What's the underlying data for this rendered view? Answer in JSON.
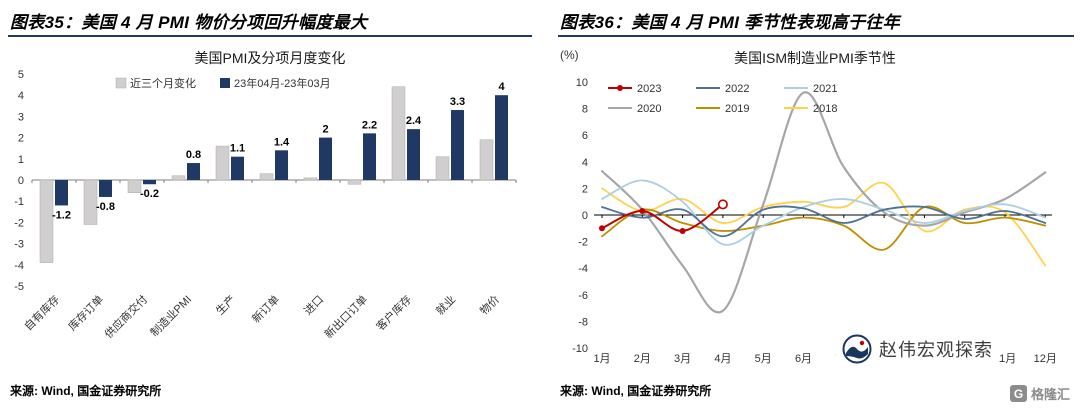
{
  "figures": {
    "left": {
      "heading": "图表35：美国 4 月 PMI 物价分项回升幅度最大",
      "source_prefix": "来源: ",
      "source_text": "Wind, 国金证券研究所"
    },
    "right": {
      "heading": "图表36：美国 4 月 PMI 季节性表现高于往年",
      "source_prefix": "来源: ",
      "source_text": "Wind, 国金证券研究所"
    }
  },
  "watermark": {
    "brand": "赵伟宏观探索"
  },
  "footer_logo": {
    "letter": "G",
    "text": "格隆汇"
  },
  "chart_data": [
    {
      "type": "bar",
      "title": "美国PMI及分项月度变化",
      "categories": [
        "自有库存",
        "库存订单",
        "供应商交付",
        "制造业PMI",
        "生产",
        "新订单",
        "进口",
        "新出口订单",
        "客户库存",
        "就业",
        "物价"
      ],
      "series": [
        {
          "name": "近三个月变化",
          "color": "#d0cece",
          "values": [
            -3.9,
            -2.1,
            -0.6,
            0.2,
            1.6,
            0.3,
            0.1,
            -0.2,
            4.4,
            1.1,
            1.9
          ]
        },
        {
          "name": "23年04月-23年03月",
          "color": "#1f3864",
          "values": [
            -1.2,
            -0.8,
            -0.2,
            0.8,
            1.1,
            1.4,
            2,
            2.2,
            2.4,
            3.3,
            4
          ],
          "labels": [
            "-1.2",
            "-0.8",
            "-0.2",
            "0.8",
            "1.1",
            "1.4",
            "2",
            "2.2",
            "2.4",
            "3.3",
            "4"
          ]
        }
      ],
      "ylim": [
        -5,
        5
      ],
      "ytick_step": 1,
      "grid": false,
      "legend_position": "top-inside"
    },
    {
      "type": "line",
      "title": "美国ISM制造业PMI季节性",
      "ylabel": "(%)",
      "x_labels": [
        "1月",
        "2月",
        "3月",
        "4月",
        "5月",
        "6月",
        "7月",
        "8月",
        "9月",
        "10月",
        "11月",
        "12月"
      ],
      "ylim": [
        -10,
        10
      ],
      "ytick_step": 2,
      "grid": false,
      "legend_position": "top-left-inside",
      "series": [
        {
          "name": "2023",
          "color": "#c00000",
          "width": 2,
          "marker": true,
          "values": [
            -1.0,
            0.3,
            -1.2,
            0.8
          ]
        },
        {
          "name": "2022",
          "color": "#4f7294",
          "width": 1.8,
          "values": [
            0.6,
            -0.2,
            0.4,
            -1.6,
            0.4,
            0.5,
            -0.6,
            0.4,
            0.6,
            -0.3,
            0.3,
            -0.6
          ]
        },
        {
          "name": "2021",
          "color": "#aecde3",
          "width": 1.8,
          "values": [
            1.2,
            2.6,
            1.0,
            -2.2,
            -0.8,
            0.6,
            1.2,
            0.4,
            -0.6,
            0.3,
            0.8,
            -0.2
          ]
        },
        {
          "name": "2020",
          "color": "#a6a6a6",
          "width": 2.2,
          "values": [
            3.3,
            0.4,
            -3.8,
            -7.2,
            0.8,
            9.2,
            3.6,
            0.2,
            -0.8,
            0.2,
            1.2,
            3.2
          ]
        },
        {
          "name": "2019",
          "color": "#bf8f00",
          "width": 1.8,
          "values": [
            -1.6,
            0.4,
            -0.6,
            -1.2,
            -0.8,
            -0.2,
            -0.8,
            -2.6,
            0.6,
            -0.6,
            -0.2,
            -0.8
          ]
        },
        {
          "name": "2018",
          "color": "#ffd24d",
          "width": 1.8,
          "values": [
            2.0,
            0.3,
            1.2,
            -0.6,
            0.6,
            1.0,
            0.6,
            2.4,
            -1.2,
            0.4,
            0.2,
            -3.8
          ]
        }
      ]
    }
  ]
}
